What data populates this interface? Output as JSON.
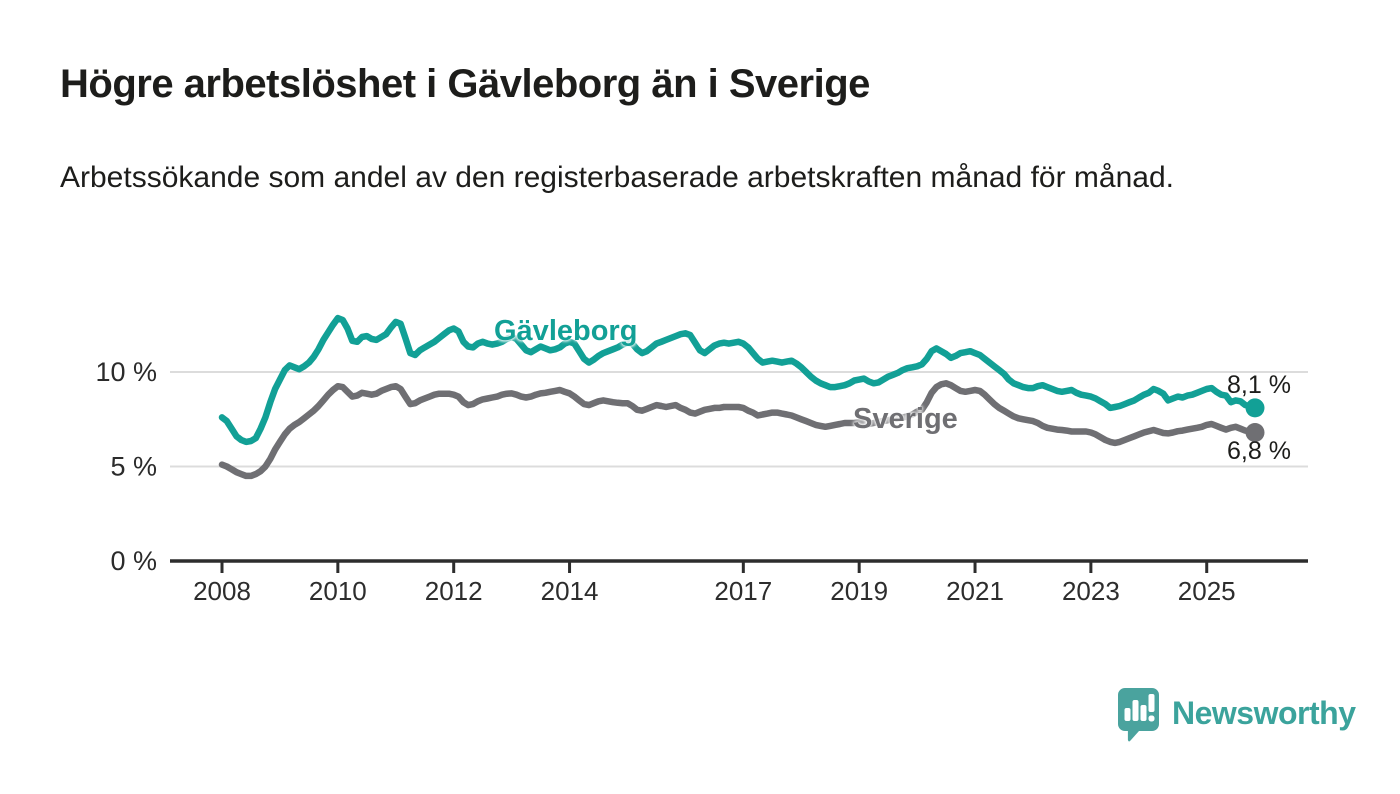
{
  "header": {
    "title": "Högre arbetslöshet i Gävleborg än i Sverige",
    "subtitle": "Arbetssökande som andel av den registerbaserade arbetskraften månad för månad."
  },
  "footer": {
    "brand": "Newsworthy",
    "brand_color": "#3ba39c",
    "logo_icon": "speech-bubble-bar-chart"
  },
  "chart_data": {
    "type": "line",
    "title": "Högre arbetslöshet i Gävleborg än i Sverige",
    "subtitle": "Arbetssökande som andel av den registerbaserade arbetskraften månad för månad.",
    "unit": "%",
    "x_start": "2008-01",
    "x_end": "2025-11",
    "x_tick_years": [
      2008,
      2010,
      2012,
      2014,
      2017,
      2019,
      2021,
      2023,
      2025
    ],
    "y_ticks": [
      {
        "value": 0,
        "label": "0 %"
      },
      {
        "value": 5,
        "label": "5 %"
      },
      {
        "value": 10,
        "label": "10 %"
      }
    ],
    "ylim": [
      0,
      13.5
    ],
    "grid": "horizontal-only",
    "legend_position": "inline-labels",
    "series": [
      {
        "name": "Gävleborg",
        "color": "#12a096",
        "end_label": "8,1 %",
        "end_value": 8.1,
        "values": [
          7.6,
          7.4,
          7.0,
          6.6,
          6.4,
          6.3,
          6.35,
          6.5,
          7.0,
          7.6,
          8.4,
          9.1,
          9.6,
          10.1,
          10.35,
          10.25,
          10.15,
          10.3,
          10.5,
          10.8,
          11.2,
          11.7,
          12.1,
          12.5,
          12.85,
          12.75,
          12.3,
          11.65,
          11.6,
          11.85,
          11.9,
          11.75,
          11.7,
          11.85,
          12.0,
          12.35,
          12.65,
          12.55,
          11.8,
          11.0,
          10.9,
          11.15,
          11.3,
          11.45,
          11.6,
          11.8,
          12.0,
          12.2,
          12.3,
          12.15,
          11.6,
          11.35,
          11.3,
          11.5,
          11.6,
          11.5,
          11.45,
          11.5,
          11.6,
          11.75,
          11.85,
          11.75,
          11.45,
          11.15,
          11.05,
          11.2,
          11.35,
          11.25,
          11.15,
          11.2,
          11.3,
          11.5,
          11.6,
          11.5,
          11.1,
          10.7,
          10.5,
          10.65,
          10.85,
          11.0,
          11.1,
          11.2,
          11.3,
          11.45,
          11.55,
          11.5,
          11.2,
          11.0,
          11.1,
          11.3,
          11.5,
          11.6,
          11.7,
          11.8,
          11.9,
          12.0,
          12.05,
          11.95,
          11.55,
          11.15,
          11.0,
          11.2,
          11.4,
          11.5,
          11.55,
          11.5,
          11.55,
          11.6,
          11.5,
          11.3,
          11.0,
          10.7,
          10.5,
          10.55,
          10.6,
          10.55,
          10.5,
          10.55,
          10.6,
          10.45,
          10.25,
          10.0,
          9.75,
          9.55,
          9.4,
          9.3,
          9.2,
          9.2,
          9.25,
          9.3,
          9.4,
          9.55,
          9.6,
          9.65,
          9.5,
          9.4,
          9.45,
          9.6,
          9.75,
          9.85,
          9.95,
          10.1,
          10.2,
          10.25,
          10.3,
          10.4,
          10.7,
          11.1,
          11.25,
          11.1,
          10.95,
          10.75,
          10.85,
          11.0,
          11.05,
          11.1,
          11.0,
          10.9,
          10.7,
          10.5,
          10.3,
          10.1,
          9.9,
          9.6,
          9.4,
          9.3,
          9.2,
          9.15,
          9.15,
          9.25,
          9.3,
          9.2,
          9.1,
          9.0,
          8.95,
          9.0,
          9.05,
          8.9,
          8.8,
          8.75,
          8.7,
          8.6,
          8.45,
          8.3,
          8.1,
          8.15,
          8.2,
          8.3,
          8.4,
          8.5,
          8.65,
          8.8,
          8.9,
          9.1,
          9.0,
          8.85,
          8.5,
          8.6,
          8.7,
          8.65,
          8.75,
          8.8,
          8.9,
          9.0,
          9.1,
          9.15,
          8.95,
          8.8,
          8.75,
          8.4,
          8.5,
          8.45,
          8.25,
          8.2,
          8.1
        ]
      },
      {
        "name": "Sverige",
        "color": "#6f6f73",
        "end_label": "6,8 %",
        "end_value": 6.8,
        "values": [
          5.1,
          5.0,
          4.85,
          4.7,
          4.6,
          4.5,
          4.5,
          4.6,
          4.75,
          5.0,
          5.4,
          5.9,
          6.3,
          6.7,
          7.0,
          7.2,
          7.35,
          7.55,
          7.75,
          7.95,
          8.2,
          8.5,
          8.8,
          9.05,
          9.25,
          9.2,
          8.95,
          8.7,
          8.75,
          8.9,
          8.85,
          8.8,
          8.85,
          9.0,
          9.1,
          9.2,
          9.25,
          9.1,
          8.7,
          8.3,
          8.35,
          8.5,
          8.6,
          8.7,
          8.8,
          8.85,
          8.85,
          8.85,
          8.8,
          8.7,
          8.4,
          8.25,
          8.3,
          8.45,
          8.55,
          8.6,
          8.65,
          8.7,
          8.8,
          8.85,
          8.87,
          8.8,
          8.7,
          8.65,
          8.7,
          8.8,
          8.87,
          8.9,
          8.95,
          9.0,
          9.05,
          8.95,
          8.87,
          8.7,
          8.5,
          8.3,
          8.25,
          8.35,
          8.45,
          8.5,
          8.45,
          8.4,
          8.37,
          8.35,
          8.35,
          8.2,
          8.0,
          7.95,
          8.05,
          8.15,
          8.25,
          8.2,
          8.15,
          8.2,
          8.25,
          8.1,
          8.0,
          7.85,
          7.8,
          7.9,
          8.0,
          8.05,
          8.1,
          8.1,
          8.15,
          8.15,
          8.15,
          8.15,
          8.1,
          7.95,
          7.85,
          7.7,
          7.75,
          7.8,
          7.85,
          7.85,
          7.8,
          7.75,
          7.7,
          7.6,
          7.5,
          7.4,
          7.3,
          7.2,
          7.15,
          7.1,
          7.15,
          7.2,
          7.25,
          7.3,
          7.3,
          7.3,
          7.35,
          7.3,
          7.25,
          7.3,
          7.35,
          7.4,
          7.45,
          7.5,
          7.55,
          7.6,
          7.65,
          7.75,
          7.9,
          8.0,
          8.4,
          8.9,
          9.2,
          9.35,
          9.4,
          9.3,
          9.15,
          9.0,
          8.95,
          9.0,
          9.05,
          9.0,
          8.8,
          8.55,
          8.3,
          8.1,
          7.95,
          7.8,
          7.65,
          7.55,
          7.5,
          7.45,
          7.4,
          7.3,
          7.15,
          7.05,
          7.0,
          6.95,
          6.93,
          6.9,
          6.85,
          6.85,
          6.85,
          6.85,
          6.8,
          6.7,
          6.55,
          6.4,
          6.3,
          6.25,
          6.3,
          6.4,
          6.5,
          6.6,
          6.7,
          6.8,
          6.87,
          6.93,
          6.85,
          6.77,
          6.75,
          6.8,
          6.87,
          6.9,
          6.95,
          7.0,
          7.05,
          7.1,
          7.2,
          7.25,
          7.15,
          7.05,
          6.95,
          7.05,
          7.1,
          7.0,
          6.9,
          6.85,
          6.8
        ]
      }
    ]
  },
  "annotations": {
    "gavleborg_label": "Gävleborg",
    "sverige_label": "Sverige",
    "gavleborg_end": "8,1 %",
    "sverige_end": "6,8 %"
  }
}
